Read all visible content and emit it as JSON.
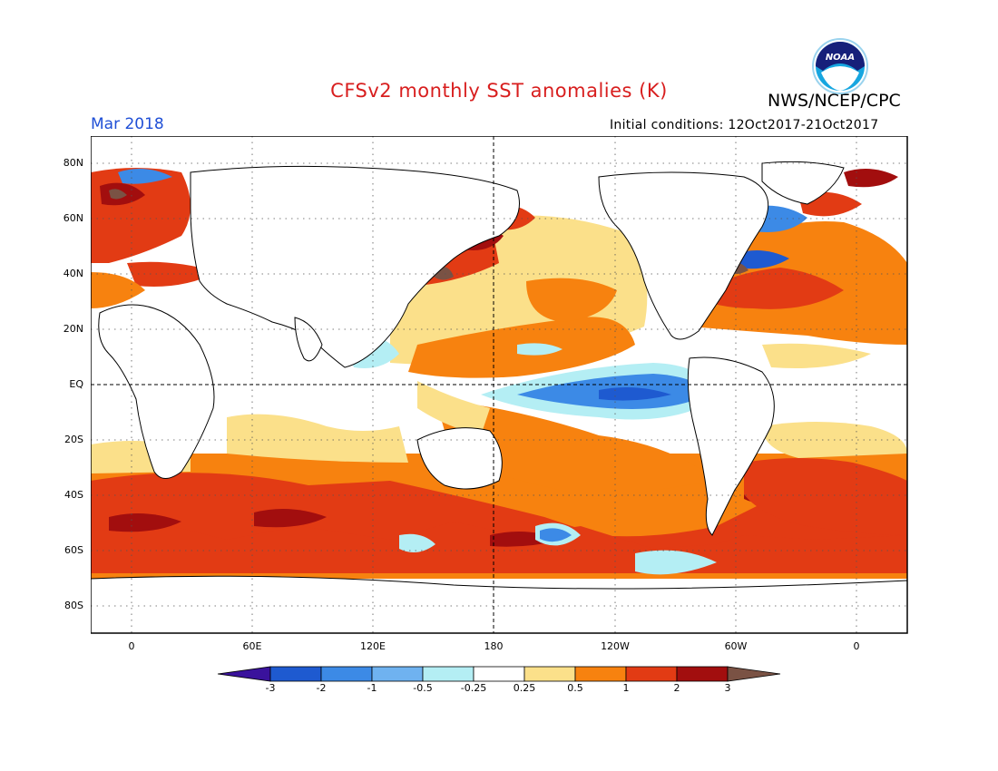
{
  "title": "CFSv2 monthly SST anomalies (K)",
  "agency": "NWS/NCEP/CPC",
  "logo_text": "NOAA",
  "valid_month": "Mar 2018",
  "initial_conditions": "Initial conditions: 12Oct2017-21Oct2017",
  "lat_labels": [
    "80N",
    "60N",
    "40N",
    "20N",
    "EQ",
    "20S",
    "40S",
    "60S",
    "80S"
  ],
  "lon_labels": [
    "0",
    "60E",
    "120E",
    "180",
    "120W",
    "60W",
    "0"
  ],
  "colorbar": {
    "labels": [
      "-3",
      "-2",
      "-1",
      "-0.5",
      "-0.25",
      "0.25",
      "0.5",
      "1",
      "2",
      "3"
    ],
    "colors": [
      "#3a129c",
      "#1e5ad0",
      "#3c8ae6",
      "#6fb2f0",
      "#b4eef4",
      "#ffffff",
      "#fbe08a",
      "#f7820f",
      "#e23b14",
      "#a20e0e",
      "#7a5244"
    ]
  },
  "colors": {
    "title": "#d81e1e",
    "month": "#1f4fd6",
    "warm_strong": "#a20e0e",
    "warm": "#e23b14",
    "warm_moderate": "#f7820f",
    "warm_weak": "#fbe08a",
    "cool_weak": "#b4eef4",
    "cool": "#3c8ae6",
    "land_line": "#000000"
  }
}
